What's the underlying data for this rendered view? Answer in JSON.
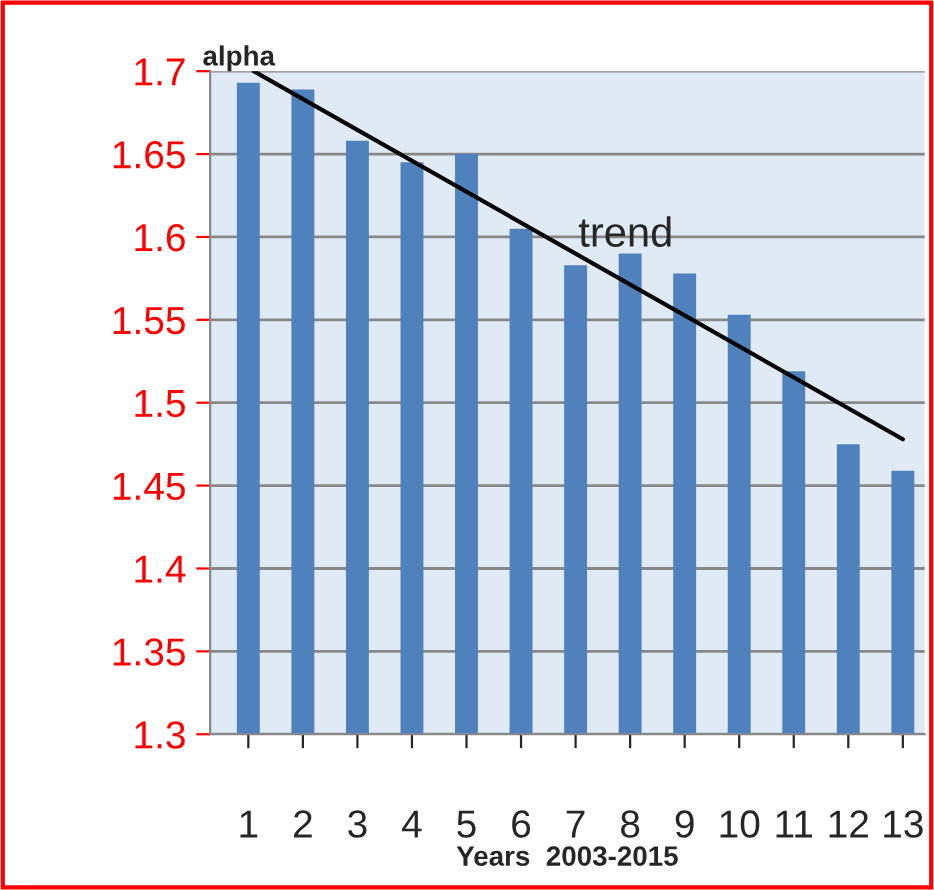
{
  "chart_data": {
    "type": "bar",
    "xlabel": "Years  2003-2015",
    "ylabel": "alpha",
    "x": [
      1,
      2,
      3,
      4,
      5,
      6,
      7,
      8,
      9,
      10,
      11,
      12,
      13
    ],
    "series": [
      {
        "color": "#4f81bd",
        "values": [
          1.693,
          1.689,
          1.658,
          1.645,
          1.65,
          1.605,
          1.583,
          1.59,
          1.578,
          1.553,
          1.519,
          1.475,
          1.459
        ]
      },
      {
        "type": "line",
        "name": "trend",
        "color": "#000000",
        "x": [
          1.1,
          13
        ],
        "values": [
          1.7,
          1.478
        ]
      }
    ],
    "xlim": [
      0.3,
      13.4
    ],
    "xticks": [
      1,
      2,
      3,
      4,
      5,
      6,
      7,
      8,
      9,
      10,
      11,
      12,
      13
    ],
    "ylim": [
      1.3,
      1.7
    ],
    "yticks": [
      1.3,
      1.35,
      1.4,
      1.45,
      1.5,
      1.55,
      1.6,
      1.65,
      1.7
    ],
    "grid": "y",
    "legend": false
  }
}
